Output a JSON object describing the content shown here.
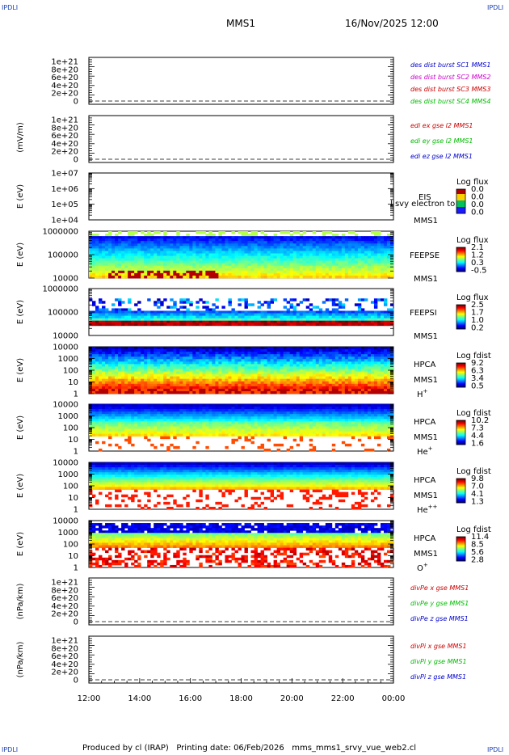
{
  "header": {
    "corner_left_top": "IPDLI",
    "corner_right_top": "IPDLI",
    "corner_left_bottom": "IPDLI",
    "corner_right_bottom": "IPDLI",
    "spacecraft": "MMS1",
    "datetime": "16/Nov/2025 12:00"
  },
  "footer": {
    "text": "Produced by cl (IRAP)   Printing date: 06/Feb/2026   mms_mms1_srvy_vue_web2.cl"
  },
  "chart_data": {
    "type": "multi-panel time series",
    "x_tick_labels": [
      "12:00",
      "14:00",
      "16:00",
      "18:00",
      "20:00",
      "22:00",
      "00:00"
    ],
    "x_range_hours": [
      12,
      24
    ],
    "panels": [
      {
        "id": "des_dist",
        "kind": "line",
        "ylabel": "",
        "yticks": [
          "1e+21",
          "8e+20",
          "6e+20",
          "4e+20",
          "2e+20",
          "0"
        ],
        "legend": [
          {
            "text": "des dist burst SC1 MMS1",
            "color": "#0000cc"
          },
          {
            "text": "des dist burst SC2 MMS2",
            "color": "#cc00cc"
          },
          {
            "text": "des dist burst SC3 MMS3",
            "color": "#cc0000"
          },
          {
            "text": "des dist burst SC4 MMS4",
            "color": "#00bb00"
          }
        ]
      },
      {
        "id": "edi",
        "kind": "line",
        "ylabel": "(mV/m)",
        "yticks": [
          "1e+21",
          "8e+20",
          "6e+20",
          "4e+20",
          "2e+20",
          "0"
        ],
        "legend": [
          {
            "text": "edi ex gse l2 MMS1",
            "color": "#cc0000"
          },
          {
            "text": "edi ey gse l2 MMS1",
            "color": "#00bb00"
          },
          {
            "text": "edi ez gse l2 MMS1",
            "color": "#0000cc"
          }
        ]
      },
      {
        "id": "eis",
        "kind": "spectrogram",
        "ylabel": "E (eV)",
        "yticks": [
          "1e+07",
          "1e+06",
          "1e+05",
          "1e+04"
        ],
        "right_labels": [
          "EIS",
          "MMS1"
        ],
        "overlap_label": "l svy electron to",
        "cbar_title": "Log flux",
        "cbar_ticks": [
          "0.0",
          "0.0",
          "0.0",
          "0.0"
        ],
        "empty": true
      },
      {
        "id": "feepse",
        "kind": "spectrogram",
        "ylabel": "E (eV)",
        "yticks": [
          "1000000",
          "100000",
          "10000"
        ],
        "right_labels": [
          "FEEPSE",
          "MMS1"
        ],
        "cbar_title": "Log flux",
        "cbar_ticks": [
          "2.1",
          "1.2",
          "0.3",
          "-0.5"
        ]
      },
      {
        "id": "feepsi",
        "kind": "spectrogram",
        "ylabel": "E (eV)",
        "yticks": [
          "1000000",
          "100000",
          "10000"
        ],
        "right_labels": [
          "FEEPSI",
          "MMS1"
        ],
        "cbar_title": "Log flux",
        "cbar_ticks": [
          "2.5",
          "1.7",
          "1.0",
          "0.2"
        ]
      },
      {
        "id": "hpca_h",
        "kind": "spectrogram",
        "ylabel": "E (eV)",
        "yticks": [
          "10000",
          "1000",
          "100",
          "10",
          "1"
        ],
        "right_labels": [
          "HPCA",
          "MMS1"
        ],
        "species": "H",
        "charge": "+",
        "cbar_title": "Log fdist",
        "cbar_ticks": [
          "9.2",
          "6.3",
          "3.4",
          "0.5"
        ]
      },
      {
        "id": "hpca_he",
        "kind": "spectrogram",
        "ylabel": "E (eV)",
        "yticks": [
          "10000",
          "1000",
          "100",
          "10",
          "1"
        ],
        "right_labels": [
          "HPCA",
          "MMS1"
        ],
        "species": "He",
        "charge": "+",
        "cbar_title": "Log fdist",
        "cbar_ticks": [
          "10.2",
          "7.3",
          "4.4",
          "1.6"
        ]
      },
      {
        "id": "hpca_hepp",
        "kind": "spectrogram",
        "ylabel": "E (eV)",
        "yticks": [
          "10000",
          "1000",
          "100",
          "10",
          "1"
        ],
        "right_labels": [
          "HPCA",
          "MMS1"
        ],
        "species": "He",
        "charge": "++",
        "cbar_title": "Log fdist",
        "cbar_ticks": [
          "9.8",
          "7.0",
          "4.1",
          "1.3"
        ]
      },
      {
        "id": "hpca_o",
        "kind": "spectrogram",
        "ylabel": "E (eV)",
        "yticks": [
          "10000",
          "1000",
          "100",
          "10",
          "1"
        ],
        "right_labels": [
          "HPCA",
          "MMS1"
        ],
        "species": "O",
        "charge": "+",
        "cbar_title": "Log fdist",
        "cbar_ticks": [
          "11.4",
          "8.5",
          "5.6",
          "2.8"
        ]
      },
      {
        "id": "divpe",
        "kind": "line",
        "ylabel": "(nPa/km)",
        "yticks": [
          "1e+21",
          "8e+20",
          "6e+20",
          "4e+20",
          "2e+20",
          "0"
        ],
        "legend": [
          {
            "text": "divPe x gse MMS1",
            "color": "#cc0000"
          },
          {
            "text": "divPe y gse MMS1",
            "color": "#00bb00"
          },
          {
            "text": "divPe z gse MMS1",
            "color": "#0000cc"
          }
        ]
      },
      {
        "id": "divpi",
        "kind": "line",
        "ylabel": "(nPa/km)",
        "yticks": [
          "1e+21",
          "8e+20",
          "6e+20",
          "4e+20",
          "2e+20",
          "0"
        ],
        "legend": [
          {
            "text": "divPi x gse MMS1",
            "color": "#cc0000"
          },
          {
            "text": "divPi y gse MMS1",
            "color": "#00bb00"
          },
          {
            "text": "divPi z gse MMS1",
            "color": "#0000cc"
          }
        ]
      }
    ]
  }
}
